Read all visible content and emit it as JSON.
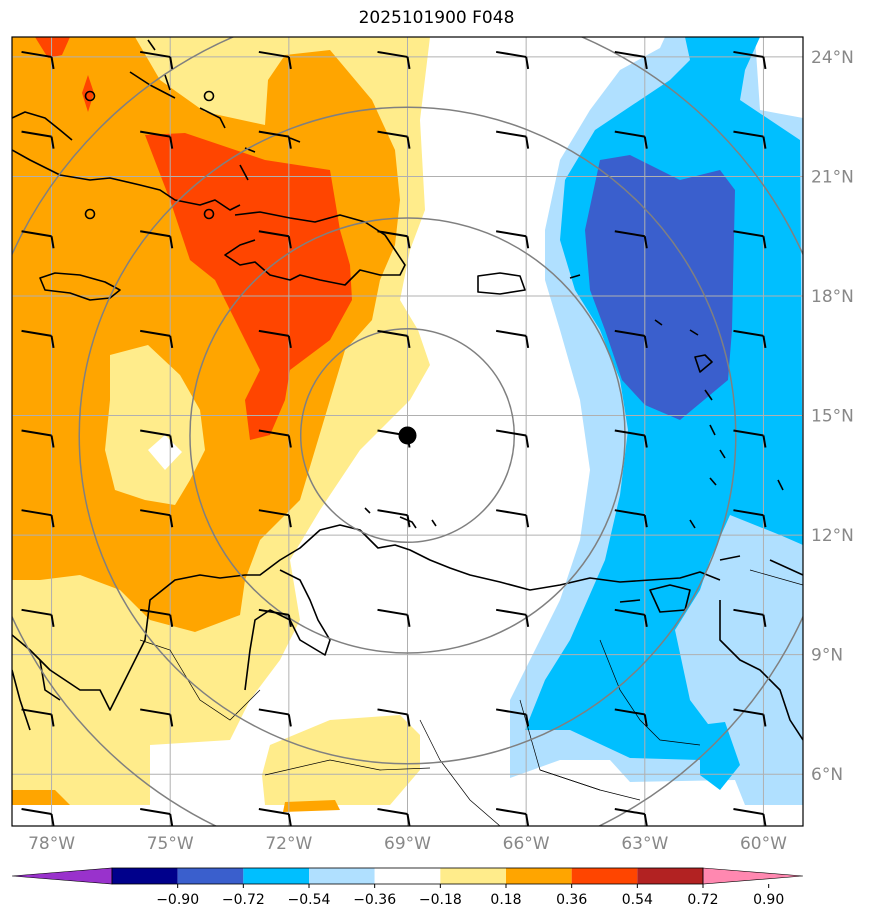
{
  "title": "2025101900 F048",
  "map": {
    "lon_range": [
      -79,
      -59
    ],
    "lat_range": [
      4.7,
      24.5
    ],
    "lat_ticks": [
      6,
      9,
      12,
      15,
      18,
      21,
      24
    ],
    "lat_labels": [
      "6°N",
      "9°N",
      "12°N",
      "15°N",
      "18°N",
      "21°N",
      "24°N"
    ],
    "lon_ticks": [
      -78,
      -75,
      -72,
      -69,
      -66,
      -63,
      -60
    ],
    "lon_labels": [
      "78°W",
      "75°W",
      "72°W",
      "69°W",
      "66°W",
      "63°W",
      "60°W"
    ],
    "storm_center": {
      "lon": -69.0,
      "lat": 14.5
    },
    "range_rings_deg": [
      2.7,
      5.5,
      8.3,
      11.0
    ],
    "grid_color": "#b0b0b0",
    "ring_color": "#808080",
    "coast_color": "#000000",
    "label_color": "#888888"
  },
  "colorbar": {
    "levels": [
      "−0.90",
      "−0.72",
      "−0.54",
      "−0.36",
      "−0.18",
      "0.18",
      "0.36",
      "0.54",
      "0.72",
      "0.90"
    ],
    "colors": [
      "#9932cc",
      "#00008b",
      "#3a5fcd",
      "#00bfff",
      "#b0e0ff",
      "#ffffff",
      "#ffec8b",
      "#ffa500",
      "#ff4500",
      "#b22222",
      "#ff88b0"
    ]
  },
  "shading_colors": {
    "light_yellow": "#ffec8b",
    "orange": "#ffa500",
    "red_orange": "#ff4500",
    "dark_red": "#b22222",
    "light_blue": "#b0e0ff",
    "cyan": "#00bfff",
    "royal_blue": "#3a5fcd"
  },
  "wind_barbs": {
    "lons": [
      -78,
      -75,
      -72,
      -69,
      -66,
      -63,
      -60
    ],
    "lats": [
      5,
      7.5,
      10,
      12.5,
      14.5,
      17,
      19.5,
      22,
      24
    ]
  }
}
